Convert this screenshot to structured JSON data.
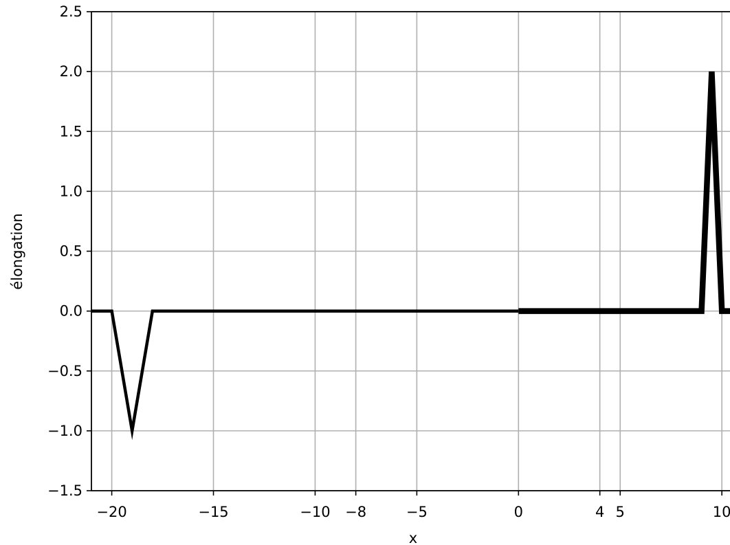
{
  "chart_data": {
    "type": "line",
    "title": "",
    "xlabel": "x",
    "ylabel": "élongation",
    "xlim": [
      -21,
      10.4
    ],
    "ylim": [
      -1.5,
      2.5
    ],
    "grid": true,
    "x_ticks": [
      -20,
      -15,
      -10,
      -8,
      -5,
      0,
      4,
      5,
      10
    ],
    "x_tick_labels": [
      "−20",
      "−15",
      "−10",
      "−8",
      "−5",
      "0",
      "4",
      "5",
      "10"
    ],
    "y_ticks": [
      -1.5,
      -1.0,
      -0.5,
      0.0,
      0.5,
      1.0,
      1.5,
      2.0,
      2.5
    ],
    "y_tick_labels": [
      "−1.5",
      "−1.0",
      "−0.5",
      "0.0",
      "0.5",
      "1.0",
      "1.5",
      "2.0",
      "2.5"
    ],
    "line_color": "#000000",
    "grid_color": "#b0b0b0",
    "series": [
      {
        "style": "thin",
        "x": [
          -21,
          -20,
          -19,
          -18,
          0
        ],
        "y": [
          0,
          0,
          -1,
          0,
          0
        ]
      },
      {
        "style": "thick",
        "x": [
          0,
          9,
          9.5,
          10,
          10.4
        ],
        "y": [
          0,
          0,
          2,
          0,
          0
        ]
      }
    ]
  }
}
